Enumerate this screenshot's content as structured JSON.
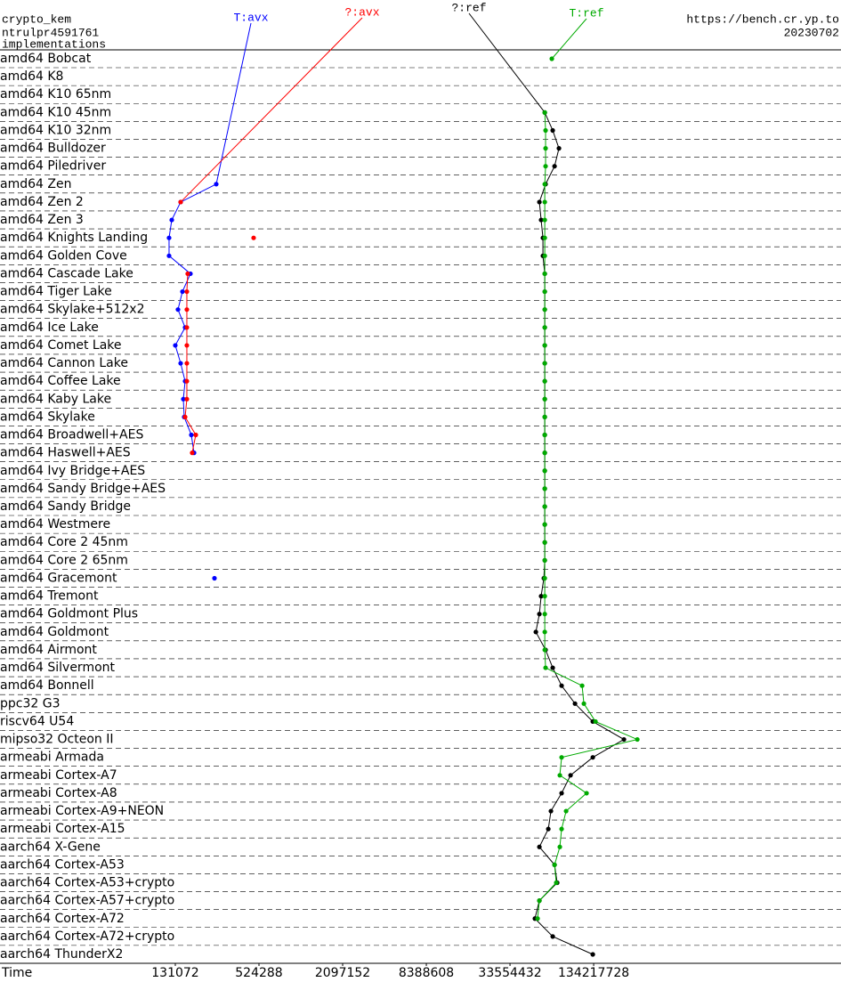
{
  "chart_data": {
    "type": "line",
    "header_left": [
      "crypto_kem",
      "ntrulpr4591761",
      "implementations"
    ],
    "header_right": [
      "https://bench.cr.yp.to",
      "20230702"
    ],
    "x_label": "Time",
    "xscale": "log",
    "xlim": [
      7180,
      8080000000
    ],
    "xticks": [
      131072,
      524288,
      2097152,
      8388608,
      33554432,
      134217728
    ],
    "categories": [
      "amd64 Bobcat",
      "amd64 K8",
      "amd64 K10 65nm",
      "amd64 K10 45nm",
      "amd64 K10 32nm",
      "amd64 Bulldozer",
      "amd64 Piledriver",
      "amd64 Zen",
      "amd64 Zen 2",
      "amd64 Zen 3",
      "amd64 Knights Landing",
      "amd64 Golden Cove",
      "amd64 Cascade Lake",
      "amd64 Tiger Lake",
      "amd64 Skylake+512x2",
      "amd64 Ice Lake",
      "amd64 Comet Lake",
      "amd64 Cannon Lake",
      "amd64 Coffee Lake",
      "amd64 Kaby Lake",
      "amd64 Skylake",
      "amd64 Broadwell+AES",
      "amd64 Haswell+AES",
      "amd64 Ivy Bridge+AES",
      "amd64 Sandy Bridge+AES",
      "amd64 Sandy Bridge",
      "amd64 Westmere",
      "amd64 Core 2 45nm",
      "amd64 Core 2 65nm",
      "amd64 Gracemont",
      "amd64 Tremont",
      "amd64 Goldmont Plus",
      "amd64 Goldmont",
      "amd64 Airmont",
      "amd64 Silvermont",
      "amd64 Bonnell",
      "ppc32 G3",
      "riscv64 U54",
      "mipso32 Octeon II",
      "armeabi Armada",
      "armeabi Cortex-A7",
      "armeabi Cortex-A8",
      "armeabi Cortex-A9+NEON",
      "armeabi Cortex-A15",
      "aarch64 X-Gene",
      "aarch64 Cortex-A53",
      "aarch64 Cortex-A53+crypto",
      "aarch64 Cortex-A57+crypto",
      "aarch64 Cortex-A72",
      "aarch64 Cortex-A72+crypto",
      "aarch64 ThunderX2"
    ],
    "series": [
      {
        "name": "T:avx",
        "color": "#0000ff",
        "values": [
          null,
          null,
          null,
          null,
          null,
          null,
          null,
          258300,
          143200,
          123600,
          118200,
          118200,
          168400,
          147500,
          137000,
          154200,
          131072,
          143200,
          154200,
          149700,
          151900,
          170900,
          178700,
          null,
          null,
          null,
          null,
          null,
          null,
          250800,
          null,
          null,
          null,
          null,
          null,
          null,
          null,
          null,
          null,
          null,
          null,
          null,
          null,
          null,
          null,
          null,
          null,
          null,
          null,
          null,
          null
        ]
      },
      {
        "name": "?:avx",
        "color": "#ff0000",
        "values": [
          null,
          null,
          null,
          null,
          null,
          null,
          null,
          null,
          143200,
          null,
          479800,
          null,
          161000,
          158700,
          158700,
          158700,
          158700,
          158700,
          158700,
          158700,
          154200,
          184000,
          173400,
          null,
          null,
          null,
          null,
          null,
          null,
          null,
          null,
          null,
          null,
          null,
          null,
          null,
          null,
          null,
          null,
          null,
          null,
          null,
          null,
          null,
          null,
          null,
          null,
          null,
          null,
          null,
          null
        ]
      },
      {
        "name": "?:ref",
        "color": "#000000",
        "values": [
          null,
          null,
          null,
          59700000,
          68100000,
          75500000,
          70200000,
          60500000,
          54600000,
          56200000,
          57900000,
          57900000,
          59700000,
          59700000,
          59700000,
          59700000,
          59700000,
          59700000,
          59700000,
          59700000,
          59700000,
          59700000,
          59700000,
          59700000,
          59700000,
          59700000,
          59700000,
          59700000,
          59700000,
          58800000,
          56200000,
          54600000,
          51500000,
          60500000,
          68100000,
          78900000,
          98500000,
          132300000,
          221600000,
          132300000,
          91500000,
          78900000,
          66100000,
          63300000,
          54600000,
          70200000,
          73300000,
          54600000,
          50700000,
          68100000,
          132300000
        ]
      },
      {
        "name": "T:ref",
        "color": "#00aa00",
        "values": [
          67100000,
          null,
          null,
          59700000,
          60500000,
          60500000,
          60500000,
          59700000,
          59700000,
          59700000,
          59700000,
          59700000,
          59700000,
          59700000,
          59700000,
          59700000,
          59700000,
          59700000,
          59700000,
          59700000,
          59700000,
          59700000,
          59700000,
          59700000,
          59700000,
          59700000,
          59700000,
          59700000,
          59700000,
          59700000,
          59700000,
          59700000,
          59700000,
          59700000,
          60500000,
          110800000,
          114100000,
          138300000,
          276600000,
          78900000,
          76600000,
          119300000,
          85000000,
          78900000,
          76600000,
          70200000,
          72200000,
          54600000,
          53000000,
          null,
          null
        ]
      }
    ]
  }
}
